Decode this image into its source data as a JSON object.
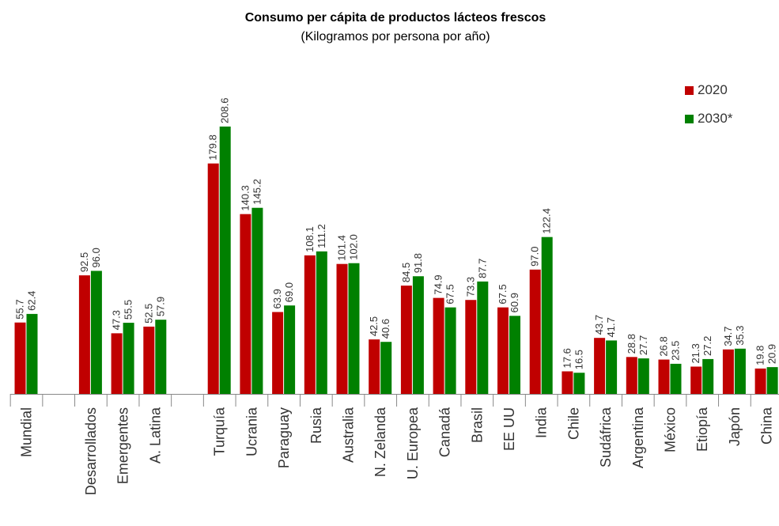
{
  "chart_data": {
    "type": "bar",
    "title": "Consumo per cápita de productos lácteos frescos",
    "subtitle": "(Kilogramos por persona por año)",
    "categories": [
      "Mundial",
      "Desarrollados",
      "Emergentes",
      "A. Latina",
      "Turquía",
      "Ucrania",
      "Paraguay",
      "Rusia",
      "Australia",
      "N. Zelanda",
      "U. Europea",
      "Canadá",
      "Brasil",
      "EE UU",
      "India",
      "Chile",
      "Sudáfrica",
      "Argentina",
      "México",
      "Etiopía",
      "Japón",
      "China"
    ],
    "series": [
      {
        "name": "2020",
        "color": "#C00000",
        "values": [
          55.7,
          92.5,
          47.3,
          52.5,
          179.8,
          140.3,
          63.9,
          108.1,
          101.4,
          42.5,
          84.5,
          74.9,
          73.3,
          67.5,
          97.0,
          17.6,
          43.7,
          28.8,
          26.8,
          21.3,
          34.7,
          19.8
        ],
        "labels": [
          "55.7",
          "92.5",
          "47.3",
          "52.5",
          "179.8",
          "140.3",
          "63.9",
          "108.1",
          "101.4",
          "42.5",
          "84.5",
          "74.9",
          "73.3",
          "67.5",
          "97.0",
          "17.6",
          "43.7",
          "28.8",
          "26.8",
          "21.3",
          "34.7",
          "19.8"
        ]
      },
      {
        "name": "2030*",
        "color": "#008000",
        "values": [
          62.4,
          96.0,
          55.5,
          57.9,
          208.6,
          145.2,
          69.0,
          111.2,
          102.0,
          40.6,
          91.8,
          67.5,
          87.7,
          60.9,
          122.4,
          16.5,
          41.7,
          27.7,
          23.5,
          27.2,
          35.3,
          20.9
        ],
        "labels": [
          "62.4",
          "96.0",
          "55.5",
          "57.9",
          "208.6",
          "145.2",
          "69.0",
          "111.2",
          "102.0",
          "40.6",
          "91.8",
          "67.5",
          "87.7",
          "60.9",
          "122.4",
          "16.5",
          "41.7",
          "27.7",
          "23.5",
          "27.2",
          "35.3",
          "20.9"
        ]
      }
    ],
    "ylim": [
      0,
      210
    ],
    "legend_position": "top-right",
    "grid": false
  }
}
